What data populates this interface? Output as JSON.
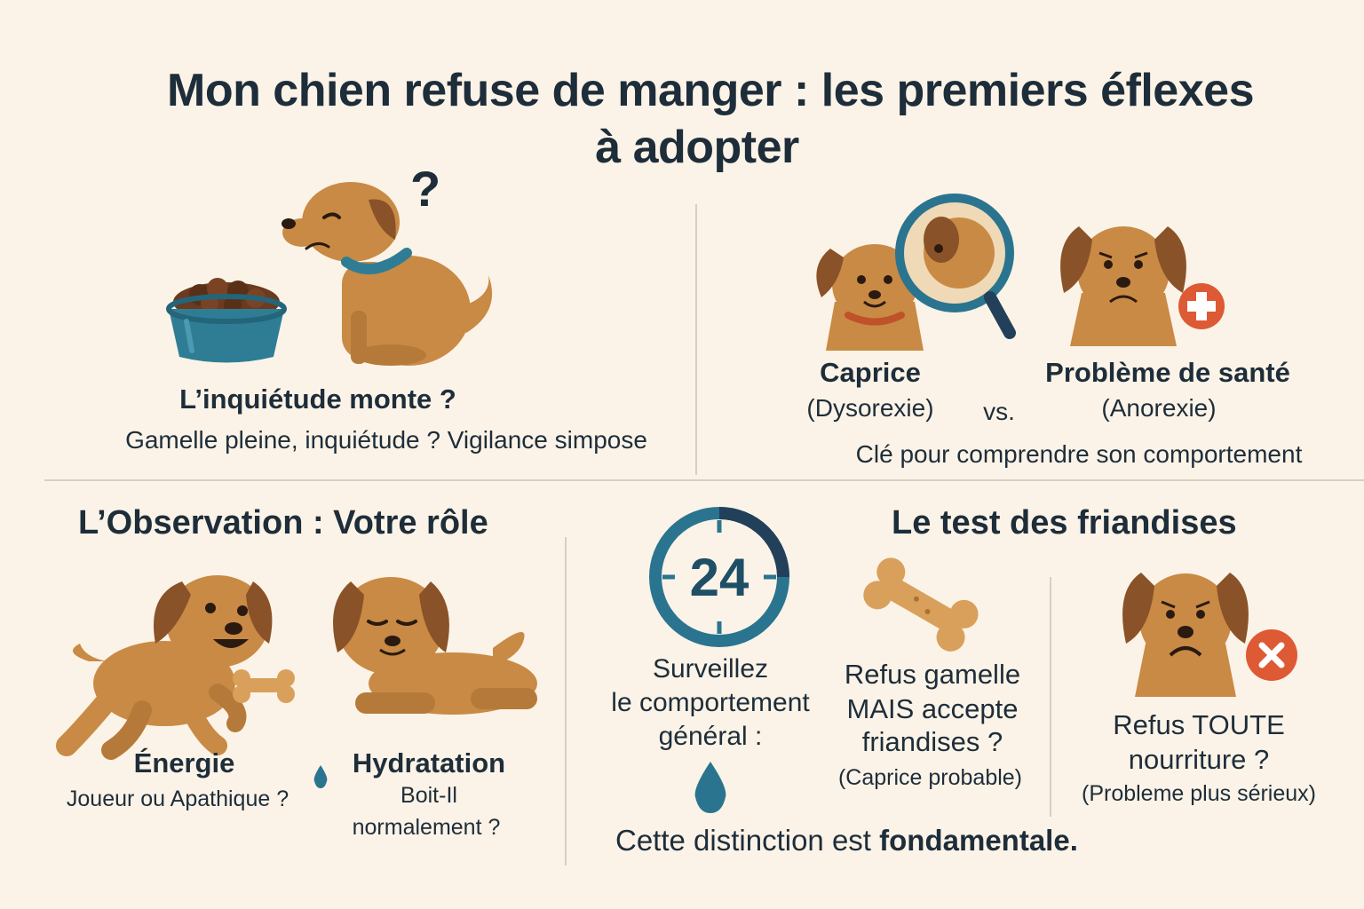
{
  "title_line1": "Mon chien refuse de manger : les premiers éflexes",
  "title_line2": "à adopter",
  "section1": {
    "heading": "L’inquiétude monte ?",
    "text": "Gamelle pleine, inquiétude ? Vigilance simpose"
  },
  "section2": {
    "left_title": "Caprice",
    "left_sub": "(Dysorexie)",
    "vs": "vs.",
    "right_title": "Problème de santé",
    "right_sub": "(Anorexie)",
    "caption": "Clé pour comprendre son comportement"
  },
  "section3": {
    "heading": "L’Observation : Votre rôle",
    "energy_title": "Énergie",
    "energy_text": "Joueur ou Apathique ?",
    "hydration_title": "Hydratation",
    "hydration_text1": "Boit-Il",
    "hydration_text2": "normalement ?"
  },
  "section4": {
    "heading": "Le test des friandises",
    "clock_number": "24",
    "watch_line1": "Surveillez",
    "watch_line2": "le comportement",
    "watch_line3": "général :",
    "treat_line1": "Refus gamelle",
    "treat_line2": "MAIS accepte",
    "treat_line3": "friandises ?",
    "treat_note": "(Caprice probable)",
    "all_line1": "Refus TOUTE",
    "all_line2": "nourriture ?",
    "all_note": "(Probleme plus sérieux)",
    "conclusion_start": "Cette distinction est",
    "conclusion_bold": "fondamentale."
  },
  "colors": {
    "background": "#fbf3e7",
    "dog_fur": "#c98a45",
    "dog_ear": "#8a5228",
    "bowl": "#2f7d95",
    "accent_teal": "#2a7490",
    "alert_red": "#dd5a35",
    "text": "#1e2d3a"
  },
  "icons": [
    "question-mark-icon",
    "dog-bowl-icon",
    "magnifying-glass-icon",
    "medical-cross-icon",
    "clock-24-icon",
    "bone-icon",
    "water-drop-icon",
    "cross-x-icon"
  ]
}
